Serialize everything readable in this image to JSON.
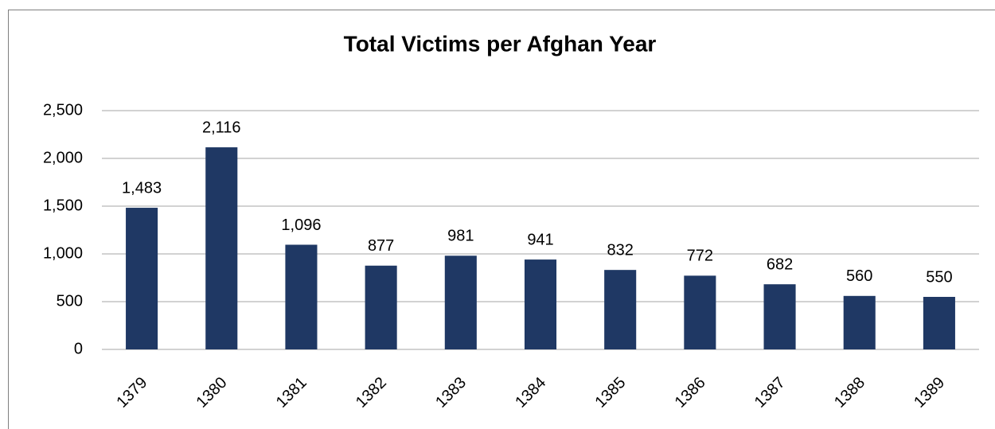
{
  "chart_data": {
    "type": "bar",
    "title": "Total Victims per Afghan Year",
    "categories": [
      "1379",
      "1380",
      "1381",
      "1382",
      "1383",
      "1384",
      "1385",
      "1386",
      "1387",
      "1388",
      "1389"
    ],
    "values": [
      1483,
      2116,
      1096,
      877,
      981,
      941,
      832,
      772,
      682,
      560,
      550
    ],
    "value_labels": [
      "1,483",
      "2,116",
      "1,096",
      "877",
      "981",
      "941",
      "832",
      "772",
      "682",
      "560",
      "550"
    ],
    "color": "#1f3864",
    "ylim": [
      0,
      2500
    ],
    "yticks": [
      0,
      500,
      {
        "value": 1000,
        "label": "1,000"
      },
      {
        "value": 1500,
        "label": "1,500"
      },
      {
        "value": 2000,
        "label": "2,000"
      },
      {
        "value": 2500,
        "label": "2,500"
      }
    ],
    "grid": true
  }
}
